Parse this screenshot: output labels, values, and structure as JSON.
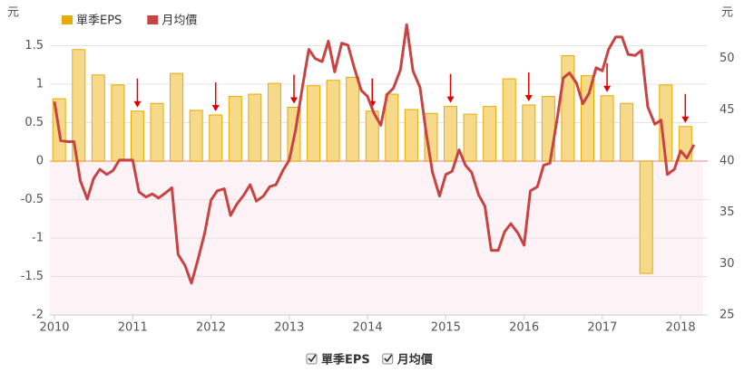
{
  "chart_data": {
    "type": "bar_line",
    "y_unit": "元",
    "y2_unit": "元",
    "xlim": [
      2010,
      2018.23
    ],
    "xticks": [
      2010,
      2011,
      2012,
      2013,
      2014,
      2015,
      2016,
      2017,
      2018
    ],
    "ylim": [
      -2,
      2
    ],
    "yticks": [
      -2,
      -1.5,
      -1,
      -0.5,
      0,
      0.5,
      1,
      1.5
    ],
    "y2lim": [
      25,
      55
    ],
    "y2ticks": [
      25,
      30,
      35,
      40,
      45,
      50
    ],
    "grid": true,
    "series": [
      {
        "name": "單季EPS",
        "type": "bar",
        "color": "#e6ac00",
        "fill": "#f7d98a",
        "x": [
          2010.06,
          2010.31,
          2010.56,
          2010.81,
          2011.06,
          2011.31,
          2011.56,
          2011.81,
          2012.06,
          2012.31,
          2012.56,
          2012.81,
          2013.06,
          2013.31,
          2013.56,
          2013.81,
          2014.06,
          2014.31,
          2014.56,
          2014.81,
          2015.06,
          2015.31,
          2015.56,
          2015.81,
          2016.06,
          2016.31,
          2016.56,
          2016.81,
          2017.06,
          2017.31,
          2017.56,
          2017.81,
          2018.06
        ],
        "values": [
          0.81,
          1.45,
          1.12,
          0.99,
          0.65,
          0.75,
          1.14,
          0.66,
          0.6,
          0.84,
          0.87,
          1.01,
          0.7,
          0.98,
          1.05,
          1.09,
          0.65,
          0.87,
          0.67,
          0.62,
          0.71,
          0.61,
          0.71,
          1.07,
          0.73,
          0.84,
          1.37,
          1.11,
          0.85,
          0.75,
          -1.46,
          0.99,
          0.45
        ]
      },
      {
        "name": "月均價",
        "type": "line",
        "axis": "y2",
        "color": "#c94343",
        "x": [
          2010.0,
          2010.08,
          2010.17,
          2010.25,
          2010.33,
          2010.42,
          2010.5,
          2010.58,
          2010.67,
          2010.75,
          2010.83,
          2010.92,
          2011.0,
          2011.08,
          2011.17,
          2011.25,
          2011.33,
          2011.42,
          2011.5,
          2011.58,
          2011.67,
          2011.75,
          2011.83,
          2011.92,
          2012.0,
          2012.08,
          2012.17,
          2012.25,
          2012.33,
          2012.42,
          2012.5,
          2012.58,
          2012.67,
          2012.75,
          2012.83,
          2012.92,
          2013.0,
          2013.08,
          2013.17,
          2013.25,
          2013.33,
          2013.42,
          2013.5,
          2013.58,
          2013.67,
          2013.75,
          2013.83,
          2013.92,
          2014.0,
          2014.08,
          2014.17,
          2014.25,
          2014.33,
          2014.42,
          2014.5,
          2014.58,
          2014.67,
          2014.75,
          2014.83,
          2014.92,
          2015.0,
          2015.08,
          2015.17,
          2015.25,
          2015.33,
          2015.42,
          2015.5,
          2015.58,
          2015.67,
          2015.75,
          2015.83,
          2015.92,
          2016.0,
          2016.08,
          2016.17,
          2016.25,
          2016.33,
          2016.42,
          2016.5,
          2016.58,
          2016.67,
          2016.75,
          2016.83,
          2016.92,
          2017.0,
          2017.08,
          2017.17,
          2017.25,
          2017.33,
          2017.42,
          2017.5,
          2017.58,
          2017.67,
          2017.75,
          2017.83,
          2017.92,
          2018.0,
          2018.08,
          2018.17
        ],
        "values": [
          45.8,
          42.0,
          41.9,
          41.9,
          38.1,
          36.3,
          38.3,
          39.2,
          38.7,
          39.1,
          40.1,
          40.1,
          40.1,
          37.0,
          36.5,
          36.8,
          36.4,
          36.9,
          37.4,
          30.9,
          29.8,
          28.1,
          30.3,
          33.0,
          36.2,
          37.1,
          37.3,
          34.7,
          35.8,
          36.7,
          37.7,
          36.1,
          36.6,
          37.5,
          37.7,
          39.1,
          40.1,
          43.0,
          47.3,
          50.9,
          50.0,
          49.7,
          51.7,
          48.7,
          51.5,
          51.3,
          49.1,
          46.9,
          46.3,
          44.7,
          43.5,
          46.5,
          47.1,
          48.9,
          53.3,
          48.8,
          47.2,
          42.7,
          38.9,
          36.6,
          38.7,
          39.0,
          41.1,
          39.6,
          38.9,
          36.7,
          35.6,
          31.3,
          31.3,
          33.1,
          33.9,
          33.0,
          31.8,
          37.1,
          37.5,
          39.6,
          39.8,
          44.0,
          48.1,
          48.6,
          47.6,
          45.6,
          46.6,
          49.1,
          48.8,
          50.9,
          52.1,
          52.1,
          50.4,
          50.3,
          50.8,
          45.3,
          43.6,
          44.0,
          38.7,
          39.2,
          41.0,
          40.3,
          41.6
        ]
      }
    ]
  }
}
